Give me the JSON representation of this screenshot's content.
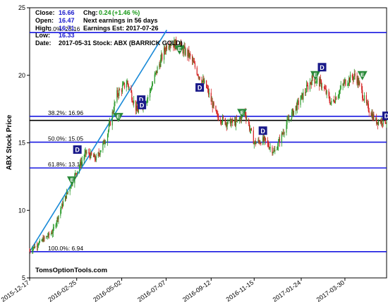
{
  "info": {
    "close_label": "Close:",
    "close_value": "16.66",
    "open_label": "Open:",
    "open_value": "16.47",
    "high_label": "High:",
    "high_value": "16.71",
    "low_label": "Low:",
    "low_value": "16.33",
    "date_label": "Date:",
    "date_value": "2017-05-31 Stock: ABX (BARRICK GOLD)",
    "chg_label": "Chg:",
    "chg_value": "0.24",
    "chg_pct": "(+1.46 %)",
    "next_earnings": "Next earnings in 56 days",
    "earnings_est": "Earnings Est: 2017-07-26"
  },
  "watermark": "TomsOptionTools.com",
  "colors": {
    "blue_line": "#1818e0",
    "trend_line": "#1a8ad8",
    "up_candle": "#2a9a2a",
    "down_candle": "#d42020",
    "badge_d": "#1a1a8a",
    "badge_e": "#2a8a3a",
    "value_text": "#1a1acc",
    "chg_text": "#1a9a1a"
  },
  "chart_data": {
    "type": "candlestick",
    "ylabel": "ABX Stock Price",
    "ylim": [
      5,
      25
    ],
    "yticks": [
      5,
      10,
      15,
      20,
      25
    ],
    "x_tick_labels": [
      "2015-12-17",
      "2016-02-25",
      "2016-05-02",
      "2016-07-07",
      "2016-09-12",
      "2016-11-15",
      "2017-01-24",
      "2017-03-30"
    ],
    "x_range": [
      "2015-12-17",
      "2017-05-31"
    ],
    "fib_levels": [
      {
        "label": "0.0%: 23.16",
        "value": 23.16
      },
      {
        "label": "38.2%: 16.96",
        "value": 16.96
      },
      {
        "label": "50.0%: 15.05",
        "value": 15.05
      },
      {
        "label": "61.8%: 13.14",
        "value": 13.14
      },
      {
        "label": "100.0%: 6.94",
        "value": 6.94
      }
    ],
    "last_close_line": 16.66,
    "trend_line": {
      "start": {
        "date": "2015-12-17",
        "value": 6.94
      },
      "end": {
        "date": "2016-07-08",
        "value": 23.35
      }
    },
    "price_path": [
      {
        "date": "2015-12-17",
        "value": 7.0
      },
      {
        "date": "2016-01-05",
        "value": 7.8
      },
      {
        "date": "2016-01-20",
        "value": 8.4
      },
      {
        "date": "2016-02-05",
        "value": 10.6
      },
      {
        "date": "2016-02-25",
        "value": 12.9
      },
      {
        "date": "2016-03-10",
        "value": 14.3
      },
      {
        "date": "2016-03-25",
        "value": 13.8
      },
      {
        "date": "2016-04-10",
        "value": 15.5
      },
      {
        "date": "2016-04-25",
        "value": 18.6
      },
      {
        "date": "2016-05-10",
        "value": 19.5
      },
      {
        "date": "2016-05-25",
        "value": 17.3
      },
      {
        "date": "2016-06-10",
        "value": 18.4
      },
      {
        "date": "2016-06-25",
        "value": 20.6
      },
      {
        "date": "2016-07-10",
        "value": 22.5
      },
      {
        "date": "2016-07-25",
        "value": 22.2
      },
      {
        "date": "2016-08-10",
        "value": 21.5
      },
      {
        "date": "2016-08-25",
        "value": 20.0
      },
      {
        "date": "2016-09-05",
        "value": 19.1
      },
      {
        "date": "2016-09-20",
        "value": 17.0
      },
      {
        "date": "2016-10-05",
        "value": 16.5
      },
      {
        "date": "2016-10-20",
        "value": 16.5
      },
      {
        "date": "2016-11-01",
        "value": 17.3
      },
      {
        "date": "2016-11-15",
        "value": 15.0
      },
      {
        "date": "2016-11-30",
        "value": 15.2
      },
      {
        "date": "2016-12-15",
        "value": 14.3
      },
      {
        "date": "2017-01-05",
        "value": 16.7
      },
      {
        "date": "2017-01-24",
        "value": 18.3
      },
      {
        "date": "2017-02-10",
        "value": 19.8
      },
      {
        "date": "2017-02-24",
        "value": 19.3
      },
      {
        "date": "2017-03-10",
        "value": 17.9
      },
      {
        "date": "2017-03-30",
        "value": 19.5
      },
      {
        "date": "2017-04-15",
        "value": 20.0
      },
      {
        "date": "2017-05-01",
        "value": 17.8
      },
      {
        "date": "2017-05-15",
        "value": 16.6
      },
      {
        "date": "2017-05-31",
        "value": 16.66
      }
    ],
    "markers": [
      {
        "type": "E",
        "date": "2016-02-18",
        "value": 12.2
      },
      {
        "type": "D",
        "date": "2016-02-26",
        "value": 14.5
      },
      {
        "type": "E",
        "date": "2016-04-27",
        "value": 16.9
      },
      {
        "type": "D",
        "date": "2016-05-31",
        "value": 18.2
      },
      {
        "type": "D",
        "date": "2016-06-01",
        "value": 17.8
      },
      {
        "type": "E",
        "date": "2016-07-27",
        "value": 21.9
      },
      {
        "type": "D",
        "date": "2016-08-26",
        "value": 19.1
      },
      {
        "type": "E",
        "date": "2016-10-28",
        "value": 17.2
      },
      {
        "type": "D",
        "date": "2016-11-28",
        "value": 15.9
      },
      {
        "type": "E",
        "date": "2017-02-14",
        "value": 20.0
      },
      {
        "type": "D",
        "date": "2017-02-24",
        "value": 20.6
      },
      {
        "type": "E",
        "date": "2017-04-25",
        "value": 20.0
      },
      {
        "type": "D",
        "date": "2017-05-31",
        "value": 17.0
      }
    ]
  }
}
